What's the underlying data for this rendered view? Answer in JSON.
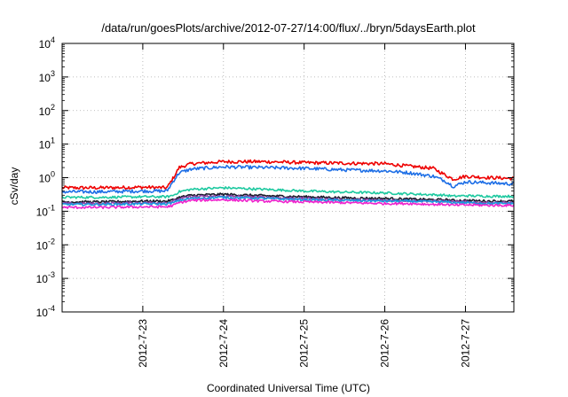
{
  "chart_data": {
    "type": "line",
    "title": "/data/run/goesPlots/archive/2012-07-27/14:00/flux/../bryn/5daysEarth.plot",
    "xlabel": "Coordinated Universal Time (UTC)",
    "ylabel": "cSv/day",
    "x_tick_labels": [
      "2012-7-23",
      "2012-7-24",
      "2012-7-25",
      "2012-7-26",
      "2012-7-27"
    ],
    "x_tick_days": [
      1,
      2,
      3,
      4,
      5
    ],
    "xlim_days": [
      0,
      5.6
    ],
    "y_scale": "log",
    "ylim": [
      0.0001,
      10000
    ],
    "y_tick_labels": [
      {
        "base": "10",
        "exp": "4"
      },
      {
        "base": "10",
        "exp": "3"
      },
      {
        "base": "10",
        "exp": "2"
      },
      {
        "base": "10",
        "exp": "1"
      },
      {
        "base": "10",
        "exp": "0"
      },
      {
        "base": "10",
        "exp": "-1"
      },
      {
        "base": "10",
        "exp": "-2"
      },
      {
        "base": "10",
        "exp": "-3"
      },
      {
        "base": "10",
        "exp": "-4"
      }
    ],
    "grid": true,
    "x_days": [
      0,
      0.5,
      1.0,
      1.3,
      1.38,
      1.45,
      1.6,
      2.0,
      2.5,
      3.0,
      3.5,
      4.0,
      4.3,
      4.6,
      4.75,
      4.85,
      5.0,
      5.3,
      5.6
    ],
    "series": [
      {
        "color": "#ee0000",
        "values": [
          0.5,
          0.5,
          0.52,
          0.5,
          1.0,
          2.0,
          2.6,
          3.0,
          3.0,
          2.8,
          2.7,
          2.6,
          2.2,
          1.9,
          1.2,
          0.9,
          1.1,
          1.0,
          0.95
        ]
      },
      {
        "color": "#1e6fe6",
        "values": [
          0.38,
          0.38,
          0.4,
          0.4,
          0.8,
          1.4,
          1.8,
          2.1,
          2.0,
          1.9,
          1.7,
          1.6,
          1.4,
          1.1,
          0.8,
          0.55,
          0.75,
          0.7,
          0.65
        ]
      },
      {
        "color": "#1ec9a0",
        "values": [
          0.26,
          0.26,
          0.27,
          0.27,
          0.3,
          0.38,
          0.45,
          0.5,
          0.45,
          0.4,
          0.37,
          0.35,
          0.33,
          0.31,
          0.3,
          0.28,
          0.29,
          0.28,
          0.28
        ]
      },
      {
        "color": "#1a1a2a",
        "values": [
          0.19,
          0.19,
          0.2,
          0.2,
          0.22,
          0.26,
          0.3,
          0.32,
          0.29,
          0.27,
          0.25,
          0.24,
          0.23,
          0.22,
          0.22,
          0.21,
          0.21,
          0.2,
          0.2
        ]
      },
      {
        "color": "#8a3fa6",
        "values": [
          0.17,
          0.17,
          0.18,
          0.18,
          0.2,
          0.23,
          0.27,
          0.28,
          0.26,
          0.24,
          0.22,
          0.21,
          0.21,
          0.2,
          0.2,
          0.19,
          0.19,
          0.18,
          0.18
        ]
      },
      {
        "color": "#1a9adf",
        "values": [
          0.16,
          0.16,
          0.165,
          0.165,
          0.18,
          0.21,
          0.24,
          0.26,
          0.24,
          0.22,
          0.21,
          0.2,
          0.2,
          0.19,
          0.19,
          0.18,
          0.18,
          0.17,
          0.17
        ]
      },
      {
        "color": "#ee22cc",
        "values": [
          0.13,
          0.13,
          0.135,
          0.135,
          0.15,
          0.18,
          0.21,
          0.22,
          0.2,
          0.19,
          0.18,
          0.17,
          0.17,
          0.16,
          0.16,
          0.15,
          0.155,
          0.15,
          0.15
        ]
      }
    ]
  }
}
